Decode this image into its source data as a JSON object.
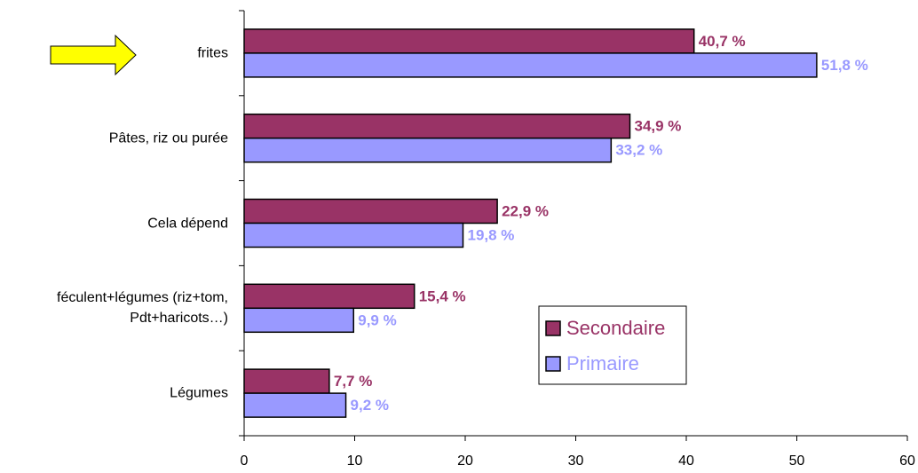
{
  "chart_data": {
    "type": "bar",
    "orientation": "horizontal",
    "categories": [
      "frites",
      "Pâtes, riz ou purée",
      "Cela dépend",
      "féculent+légumes (riz+tom,\nPdt+haricots…)",
      "Légumes"
    ],
    "series": [
      {
        "name": "Secondaire",
        "color": "#993366",
        "values": [
          40.7,
          34.9,
          22.9,
          15.4,
          7.7
        ],
        "value_labels": [
          "40,7 %",
          "34,9 %",
          "22,9 %",
          "15,4 %",
          "7,7 %"
        ]
      },
      {
        "name": "Primaire",
        "color": "#9999ff",
        "values": [
          51.8,
          33.2,
          19.8,
          9.9,
          9.2
        ],
        "value_labels": [
          "51,8 %",
          "33,2 %",
          "19,8 %",
          "9,9 %",
          "9,2 %"
        ]
      }
    ],
    "xlim": [
      0,
      60
    ],
    "xticks": [
      0,
      10,
      20,
      30,
      40,
      50,
      60
    ]
  }
}
